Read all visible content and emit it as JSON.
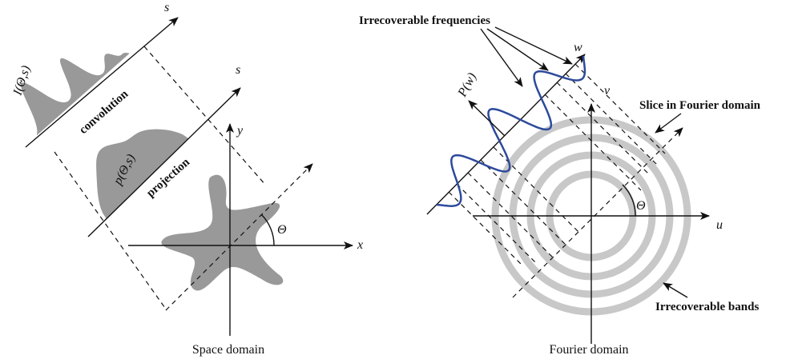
{
  "space": {
    "s_top": "s",
    "s_bottom": "s",
    "intensity": "I(Θ,s)",
    "convolution": "convolution",
    "projection_fn": "p(Θ,s)",
    "projection": "projection",
    "y": "y",
    "x": "x",
    "theta": "Θ",
    "caption": "Space domain"
  },
  "fourier": {
    "irrecoverable_frequencies": "Irrecoverable frequencies",
    "w": "w",
    "pw": "P(w)",
    "v": "v",
    "slice": "Slice in Fourier domain",
    "theta": "Θ",
    "u": "u",
    "irrecoverable_bands": "Irrecoverable bands",
    "caption": "Fourier domain"
  }
}
